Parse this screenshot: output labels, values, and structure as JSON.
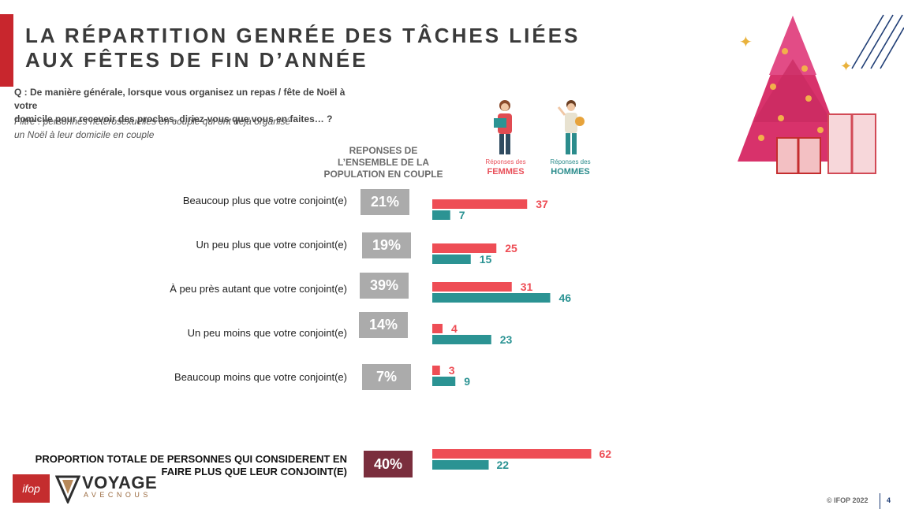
{
  "title": {
    "line1": "LA RÉPARTITION GENRÉE DES TÂCHES LIÉES",
    "line2": "AUX FÊTES DE FIN D’ANNÉE"
  },
  "question": {
    "line1": "Q : De manière générale, lorsque vous organisez un repas / fête de Noël à votre",
    "line2": "domicile pour recevoir des proches, diriez-vous que vous en faites… ?"
  },
  "filter": {
    "line1": "Filtre  : personnes hétérosexuelles en couple qui ont déjà organisé",
    "line2": "un Noël à leur domicile en couple"
  },
  "population_header": {
    "line1": "REPONSES DE",
    "line2": "L’ENSEMBLE DE LA",
    "line3": "POPULATION EN COUPLE"
  },
  "legend": {
    "women_small": "Réponses des",
    "women_big": "FEMMES",
    "men_small": "Réponses des",
    "men_big": "HOMMES"
  },
  "colors": {
    "women": "#ee4d55",
    "men": "#2b9393",
    "population_box": "#ababab",
    "total_box": "#7a2e3d",
    "accent_red": "#c8262d"
  },
  "total_label": {
    "line1": "PROPORTION TOTALE DE PERSONNES QUI CONSIDERENT EN",
    "line2": "FAIRE PLUS QUE LEUR CONJOINT(E)"
  },
  "footer": {
    "copyright": "© IFOP 2022",
    "page": "4",
    "ifop_logo": "ifop",
    "voyage_logo": "VOYAGE",
    "voyage_sub": "AVECNOUS"
  },
  "chart_data": {
    "type": "bar",
    "orientation": "horizontal",
    "categories": [
      "Beaucoup plus que votre conjoint(e)",
      "Un peu plus que votre conjoint(e)",
      "À peu près autant que votre conjoint(e)",
      "Un peu moins que votre conjoint(e)",
      "Beaucoup moins que votre conjoint(e)"
    ],
    "population_labels": [
      "21%",
      "19%",
      "39%",
      "14%",
      "7%"
    ],
    "series": [
      {
        "name": "FEMMES",
        "values": [
          37,
          25,
          31,
          4,
          3
        ]
      },
      {
        "name": "HOMMES",
        "values": [
          7,
          15,
          46,
          23,
          9
        ]
      }
    ],
    "total": {
      "population_label": "40%",
      "FEMMES": 62,
      "HOMMES": 22
    },
    "grid": false
  }
}
